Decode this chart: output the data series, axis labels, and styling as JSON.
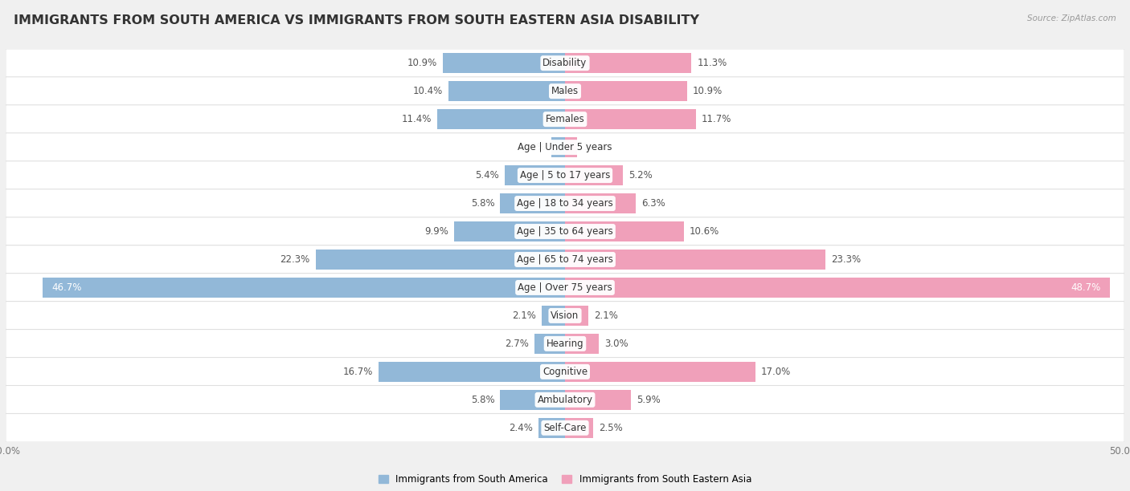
{
  "title": "IMMIGRANTS FROM SOUTH AMERICA VS IMMIGRANTS FROM SOUTH EASTERN ASIA DISABILITY",
  "source": "Source: ZipAtlas.com",
  "categories": [
    "Disability",
    "Males",
    "Females",
    "Age | Under 5 years",
    "Age | 5 to 17 years",
    "Age | 18 to 34 years",
    "Age | 35 to 64 years",
    "Age | 65 to 74 years",
    "Age | Over 75 years",
    "Vision",
    "Hearing",
    "Cognitive",
    "Ambulatory",
    "Self-Care"
  ],
  "left_values": [
    10.9,
    10.4,
    11.4,
    1.2,
    5.4,
    5.8,
    9.9,
    22.3,
    46.7,
    2.1,
    2.7,
    16.7,
    5.8,
    2.4
  ],
  "right_values": [
    11.3,
    10.9,
    11.7,
    1.1,
    5.2,
    6.3,
    10.6,
    23.3,
    48.7,
    2.1,
    3.0,
    17.0,
    5.9,
    2.5
  ],
  "left_color": "#92b8d8",
  "right_color": "#f0a0ba",
  "left_label": "Immigrants from South America",
  "right_label": "Immigrants from South Eastern Asia",
  "axis_limit": 50.0,
  "bg_color": "#f0f0f0",
  "row_bg_color": "#ffffff",
  "row_sep_color": "#e0e0e0",
  "bar_height": 0.72,
  "title_fontsize": 11.5,
  "label_fontsize": 8.5,
  "value_fontsize": 8.5,
  "tick_fontsize": 8.5,
  "cat_label_fontsize": 8.5
}
